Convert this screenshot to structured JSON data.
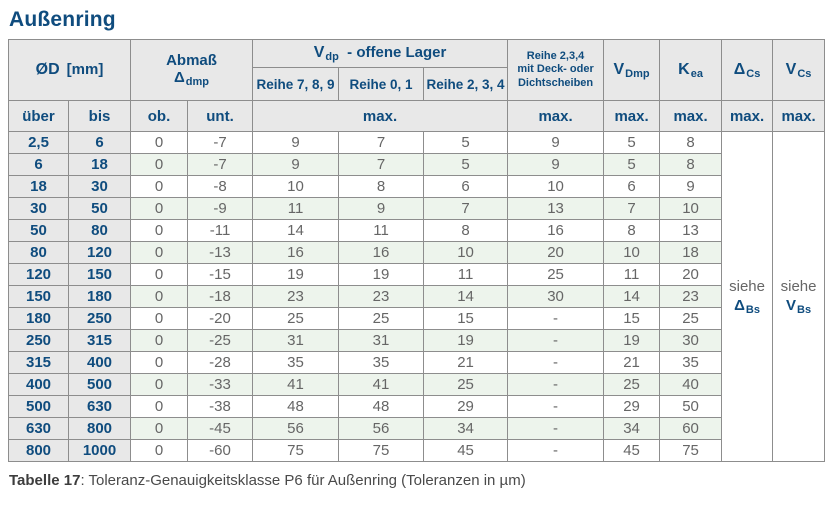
{
  "title": "Außenring",
  "caption": {
    "bold": "Tabelle 17",
    "rest": ": Toleranz-Genauigkeitsklasse P6 für Außenring (Toleranzen in µm)"
  },
  "colors": {
    "accent_blue": "#0f4c7e",
    "header_gray": "#e8e8e8",
    "stripe_green": "#edf4ec",
    "border_gray": "#8d8d8d",
    "value_gray": "#666666"
  },
  "table": {
    "header": {
      "diameter_sym": "ØD",
      "diameter_unit": "[mm]",
      "abmass_line1": "Abmaß",
      "abmass_sym": "Δ",
      "abmass_sub": "dmp",
      "vdp_sym": "V",
      "vdp_sub": "dp",
      "vdp_rest": "-  offene Lager",
      "reihe_789": "Reihe 7, 8, 9",
      "reihe_01": "Reihe 0, 1",
      "reihe_234": "Reihe 2, 3, 4",
      "deck_line1": "Reihe 2,3,4",
      "deck_line2": "mit Deck- oder",
      "deck_line3": "Dichtscheiben",
      "vdmp_sym": "V",
      "vdmp_sub": "Dmp",
      "kea_sym": "K",
      "kea_sub": "ea",
      "dcs_sym": "Δ",
      "dcs_sub": "Cs",
      "vcs_sym": "V",
      "vcs_sub": "Cs",
      "ueber": "über",
      "bis": "bis",
      "ob": "ob.",
      "unt": "unt.",
      "max": "max."
    },
    "see_dcs": {
      "word": "siehe",
      "sym": "Δ",
      "sub": "Bs"
    },
    "see_vcs": {
      "word": "siehe",
      "sym": "V",
      "sub": "Bs"
    },
    "rows": [
      {
        "ueber": "2,5",
        "bis": "6",
        "values": [
          "0",
          "-7",
          "9",
          "7",
          "5",
          "9",
          "5",
          "8"
        ]
      },
      {
        "ueber": "6",
        "bis": "18",
        "values": [
          "0",
          "-7",
          "9",
          "7",
          "5",
          "9",
          "5",
          "8"
        ]
      },
      {
        "ueber": "18",
        "bis": "30",
        "values": [
          "0",
          "-8",
          "10",
          "8",
          "6",
          "10",
          "6",
          "9"
        ]
      },
      {
        "ueber": "30",
        "bis": "50",
        "values": [
          "0",
          "-9",
          "11",
          "9",
          "7",
          "13",
          "7",
          "10"
        ]
      },
      {
        "ueber": "50",
        "bis": "80",
        "values": [
          "0",
          "-11",
          "14",
          "11",
          "8",
          "16",
          "8",
          "13"
        ]
      },
      {
        "ueber": "80",
        "bis": "120",
        "values": [
          "0",
          "-13",
          "16",
          "16",
          "10",
          "20",
          "10",
          "18"
        ]
      },
      {
        "ueber": "120",
        "bis": "150",
        "values": [
          "0",
          "-15",
          "19",
          "19",
          "11",
          "25",
          "11",
          "20"
        ]
      },
      {
        "ueber": "150",
        "bis": "180",
        "values": [
          "0",
          "-18",
          "23",
          "23",
          "14",
          "30",
          "14",
          "23"
        ]
      },
      {
        "ueber": "180",
        "bis": "250",
        "values": [
          "0",
          "-20",
          "25",
          "25",
          "15",
          "-",
          "15",
          "25"
        ]
      },
      {
        "ueber": "250",
        "bis": "315",
        "values": [
          "0",
          "-25",
          "31",
          "31",
          "19",
          "-",
          "19",
          "30"
        ]
      },
      {
        "ueber": "315",
        "bis": "400",
        "values": [
          "0",
          "-28",
          "35",
          "35",
          "21",
          "-",
          "21",
          "35"
        ]
      },
      {
        "ueber": "400",
        "bis": "500",
        "values": [
          "0",
          "-33",
          "41",
          "41",
          "25",
          "-",
          "25",
          "40"
        ]
      },
      {
        "ueber": "500",
        "bis": "630",
        "values": [
          "0",
          "-38",
          "48",
          "48",
          "29",
          "-",
          "29",
          "50"
        ]
      },
      {
        "ueber": "630",
        "bis": "800",
        "values": [
          "0",
          "-45",
          "56",
          "56",
          "34",
          "-",
          "34",
          "60"
        ]
      },
      {
        "ueber": "800",
        "bis": "1000",
        "values": [
          "0",
          "-60",
          "75",
          "75",
          "45",
          "-",
          "45",
          "75"
        ]
      }
    ]
  }
}
